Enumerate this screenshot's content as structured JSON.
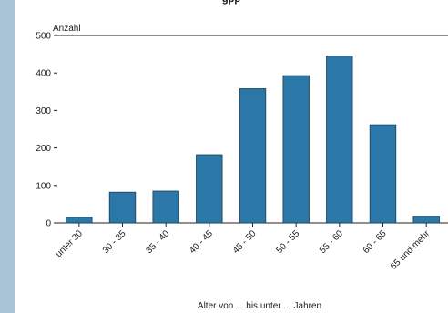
{
  "header": {
    "title_fragment": "gpp"
  },
  "chart_data": {
    "type": "bar",
    "title": "",
    "xlabel": "Alter von ... bis unter ... Jahren",
    "ylabel": "Anzahl",
    "ylim": [
      0,
      500
    ],
    "yticks": [
      0,
      100,
      200,
      300,
      400,
      500
    ],
    "grid": false,
    "categories": [
      "unter 30",
      "30 - 35",
      "35 - 40",
      "40 - 45",
      "45 - 50",
      "50 - 55",
      "55 - 60",
      "60 - 65",
      "65 und mehr"
    ],
    "values": [
      15,
      82,
      85,
      182,
      358,
      393,
      445,
      262,
      18
    ],
    "colors": {
      "bar": "#2b78a8",
      "bar_stroke": "#1b3f5a",
      "axis": "#222222",
      "background": "#ffffff",
      "frame": "#a9c3d6"
    }
  }
}
